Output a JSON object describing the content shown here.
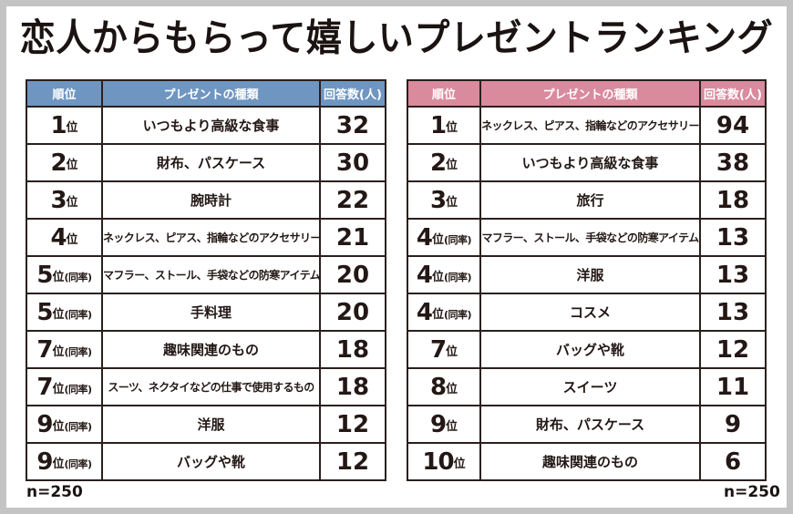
{
  "title": "恋人からもらって嬉しいプレゼントランキング",
  "colors": {
    "left_header": "#6f96c1",
    "right_header": "#d98a9c",
    "border": "#2a201d",
    "frame": "#c4c4c4"
  },
  "left_table": {
    "headers": [
      "順位",
      "プレゼントの種類",
      "回答数(人)"
    ],
    "rows": [
      {
        "rank": "1",
        "suffix": "位",
        "tie": "",
        "item": "いつもより高級な食事",
        "count": "32"
      },
      {
        "rank": "2",
        "suffix": "位",
        "tie": "",
        "item": "財布、パスケース",
        "count": "30"
      },
      {
        "rank": "3",
        "suffix": "位",
        "tie": "",
        "item": "腕時計",
        "count": "22"
      },
      {
        "rank": "4",
        "suffix": "位",
        "tie": "",
        "item": "ネックレス、ピアス、指輪などのアクセサリー",
        "count": "21"
      },
      {
        "rank": "5",
        "suffix": "位",
        "tie": "(同率)",
        "item": "マフラー、ストール、手袋などの防寒アイテム",
        "count": "20"
      },
      {
        "rank": "5",
        "suffix": "位",
        "tie": "(同率)",
        "item": "手料理",
        "count": "20"
      },
      {
        "rank": "7",
        "suffix": "位",
        "tie": "(同率)",
        "item": "趣味関連のもの",
        "count": "18"
      },
      {
        "rank": "7",
        "suffix": "位",
        "tie": "(同率)",
        "item": "スーツ、ネクタイなどの仕事で使用するもの",
        "count": "18"
      },
      {
        "rank": "9",
        "suffix": "位",
        "tie": "(同率)",
        "item": "洋服",
        "count": "12"
      },
      {
        "rank": "9",
        "suffix": "位",
        "tie": "(同率)",
        "item": "バッグや靴",
        "count": "12"
      }
    ],
    "note": "n=250"
  },
  "right_table": {
    "headers": [
      "順位",
      "プレゼントの種類",
      "回答数(人)"
    ],
    "rows": [
      {
        "rank": "1",
        "suffix": "位",
        "tie": "",
        "item": "ネックレス、ピアス、指輪などのアクセサリー",
        "count": "94"
      },
      {
        "rank": "2",
        "suffix": "位",
        "tie": "",
        "item": "いつもより高級な食事",
        "count": "38"
      },
      {
        "rank": "3",
        "suffix": "位",
        "tie": "",
        "item": "旅行",
        "count": "18"
      },
      {
        "rank": "4",
        "suffix": "位",
        "tie": "(同率)",
        "item": "マフラー、ストール、手袋などの防寒アイテム",
        "count": "13"
      },
      {
        "rank": "4",
        "suffix": "位",
        "tie": "(同率)",
        "item": "洋服",
        "count": "13"
      },
      {
        "rank": "4",
        "suffix": "位",
        "tie": "(同率)",
        "item": "コスメ",
        "count": "13"
      },
      {
        "rank": "7",
        "suffix": "位",
        "tie": "",
        "item": "バッグや靴",
        "count": "12"
      },
      {
        "rank": "8",
        "suffix": "位",
        "tie": "",
        "item": "スイーツ",
        "count": "11"
      },
      {
        "rank": "9",
        "suffix": "位",
        "tie": "",
        "item": "財布、パスケース",
        "count": "9"
      },
      {
        "rank": "10",
        "suffix": "位",
        "tie": "",
        "item": "趣味関連のもの",
        "count": "6"
      }
    ],
    "note": "n=250"
  },
  "chart_data": [
    {
      "type": "table",
      "title": "恋人からもらって嬉しいプレゼントランキング",
      "columns": [
        "順位",
        "プレゼントの種類",
        "回答数(人)"
      ],
      "header_color": "#6f96c1",
      "rows": [
        [
          "1位",
          "いつもより高級な食事",
          32
        ],
        [
          "2位",
          "財布、パスケース",
          30
        ],
        [
          "3位",
          "腕時計",
          22
        ],
        [
          "4位",
          "ネックレス、ピアス、指輪などのアクセサリー",
          21
        ],
        [
          "5位(同率)",
          "マフラー、ストール、手袋などの防寒アイテム",
          20
        ],
        [
          "5位(同率)",
          "手料理",
          20
        ],
        [
          "7位(同率)",
          "趣味関連のもの",
          18
        ],
        [
          "7位(同率)",
          "スーツ、ネクタイなどの仕事で使用するもの",
          18
        ],
        [
          "9位(同率)",
          "洋服",
          12
        ],
        [
          "9位(同率)",
          "バッグや靴",
          12
        ]
      ],
      "note": "n=250"
    },
    {
      "type": "table",
      "title": "恋人からもらって嬉しいプレゼントランキング",
      "columns": [
        "順位",
        "プレゼントの種類",
        "回答数(人)"
      ],
      "header_color": "#d98a9c",
      "rows": [
        [
          "1位",
          "ネックレス、ピアス、指輪などのアクセサリー",
          94
        ],
        [
          "2位",
          "いつもより高級な食事",
          38
        ],
        [
          "3位",
          "旅行",
          18
        ],
        [
          "4位(同率)",
          "マフラー、ストール、手袋などの防寒アイテム",
          13
        ],
        [
          "4位(同率)",
          "洋服",
          13
        ],
        [
          "4位(同率)",
          "コスメ",
          13
        ],
        [
          "7位",
          "バッグや靴",
          12
        ],
        [
          "8位",
          "スイーツ",
          11
        ],
        [
          "9位",
          "財布、パスケース",
          9
        ],
        [
          "10位",
          "趣味関連のもの",
          6
        ]
      ],
      "note": "n=250"
    }
  ]
}
